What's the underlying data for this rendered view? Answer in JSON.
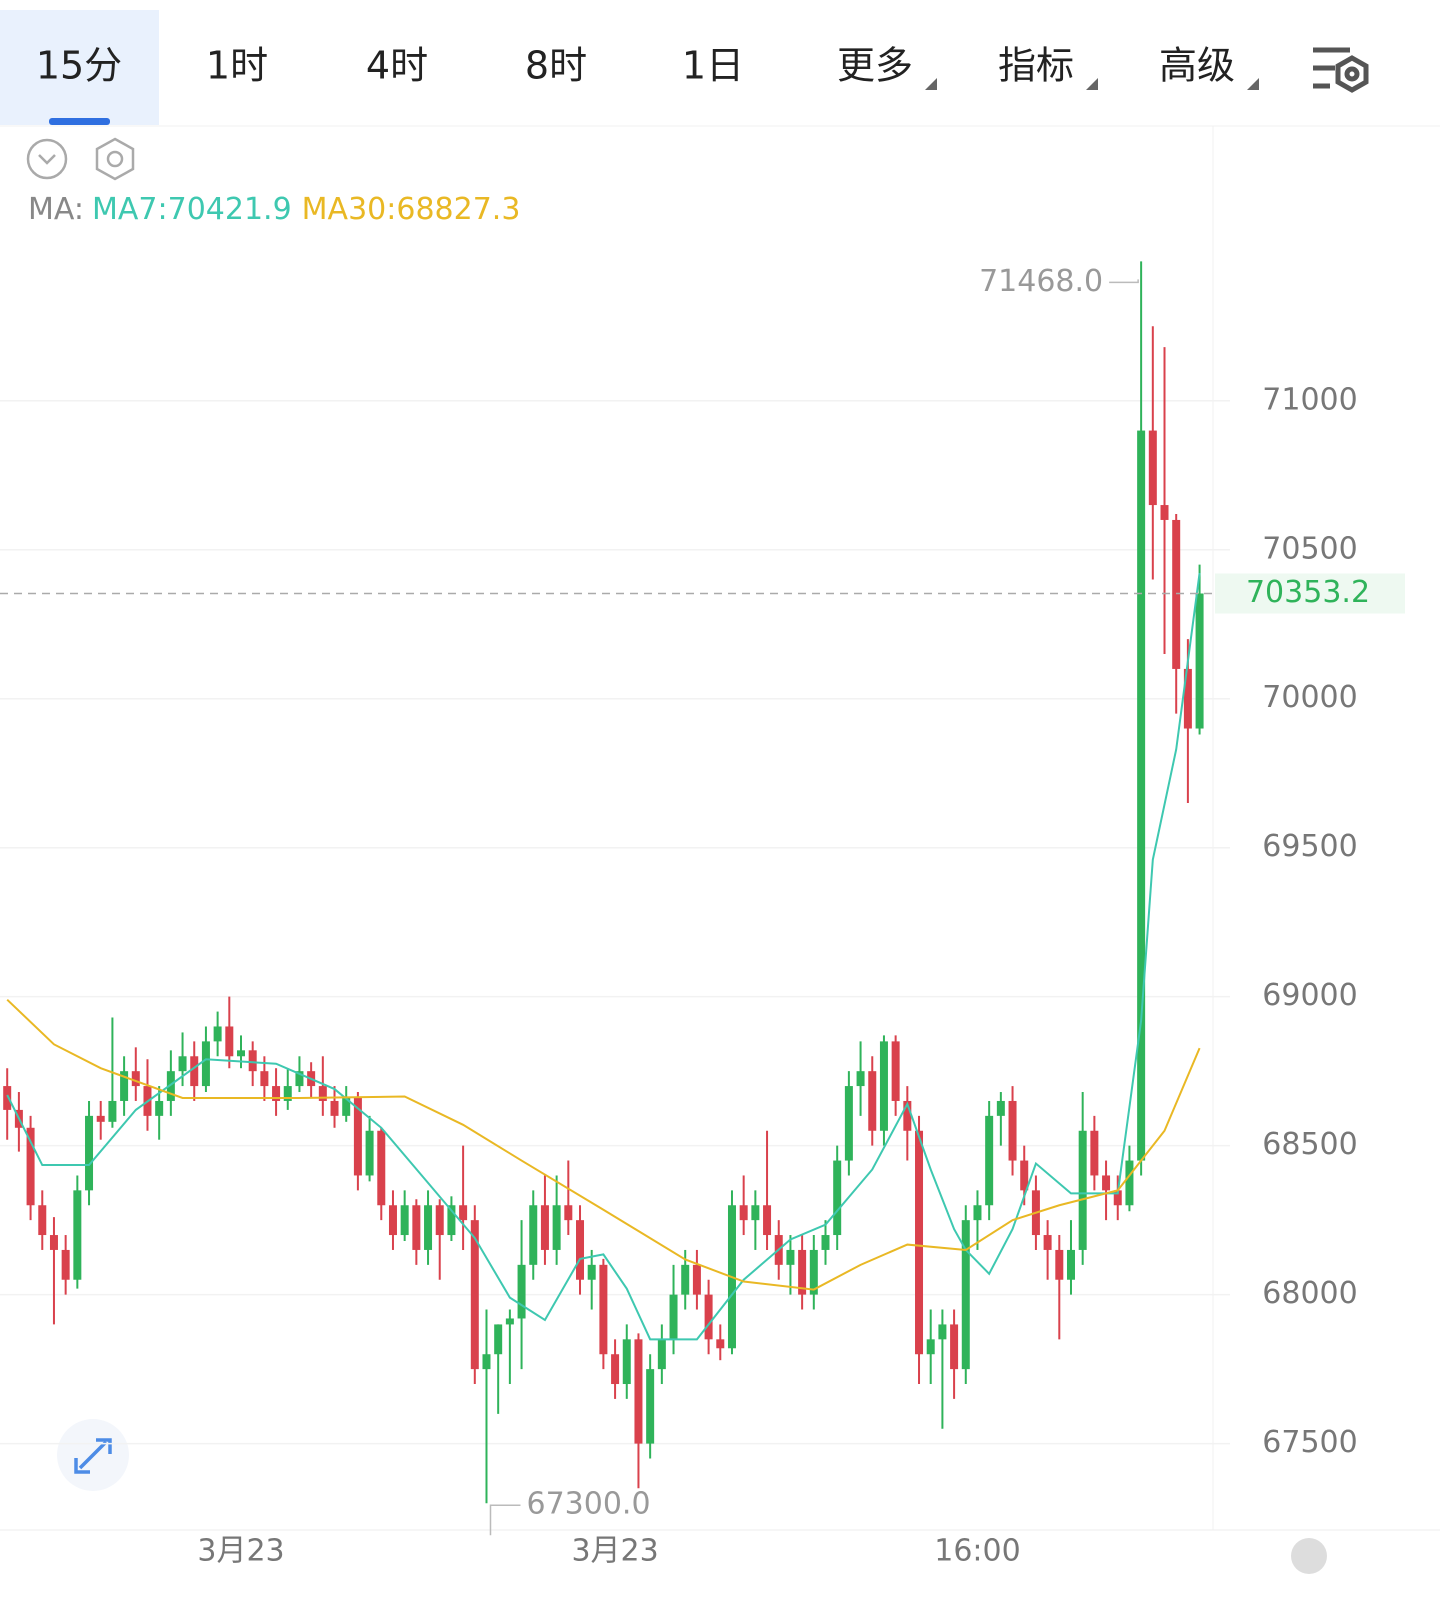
{
  "tabs": [
    "15分",
    "1时",
    "4时",
    "8时",
    "1日",
    "更多",
    "指标",
    "高级"
  ],
  "chart_data": {
    "type": "candlestick",
    "ma_prefix": "MA:",
    "up_color": "#2fb35a",
    "down_color": "#d9414c",
    "ylim": [
      67200,
      71600
    ],
    "yticks": [
      67500,
      68000,
      68500,
      69000,
      69500,
      70000,
      70500,
      71000
    ],
    "grid": true,
    "categories": [
      null,
      null,
      null,
      null,
      null,
      null,
      null,
      null,
      null,
      null,
      null,
      null,
      null,
      null,
      null,
      null,
      null,
      null,
      null,
      null,
      "3月23",
      null,
      null,
      null,
      null,
      null,
      null,
      null,
      null,
      null,
      null,
      null,
      null,
      null,
      null,
      null,
      null,
      null,
      null,
      null,
      null,
      null,
      null,
      null,
      null,
      null,
      null,
      null,
      null,
      null,
      null,
      null,
      "3月23",
      null,
      null,
      null,
      null,
      null,
      null,
      null,
      null,
      null,
      null,
      null,
      null,
      null,
      null,
      null,
      null,
      null,
      null,
      null,
      null,
      null,
      null,
      null,
      null,
      null,
      null,
      null,
      null,
      null,
      null,
      "16:00",
      null,
      null,
      null,
      null,
      null,
      null,
      null,
      null,
      null,
      null,
      null,
      null,
      null,
      null,
      null,
      null,
      null,
      null
    ],
    "candles": [
      [
        68700,
        68760,
        68520,
        68620
      ],
      [
        68620,
        68680,
        68480,
        68560
      ],
      [
        68560,
        68600,
        68250,
        68300
      ],
      [
        68300,
        68350,
        68150,
        68200
      ],
      [
        68200,
        68260,
        67900,
        68150
      ],
      [
        68150,
        68200,
        68000,
        68050
      ],
      [
        68050,
        68400,
        68020,
        68350
      ],
      [
        68350,
        68650,
        68300,
        68600
      ],
      [
        68600,
        68650,
        68520,
        68580
      ],
      [
        68580,
        68930,
        68560,
        68650
      ],
      [
        68650,
        68800,
        68600,
        68750
      ],
      [
        68750,
        68830,
        68650,
        68700
      ],
      [
        68700,
        68790,
        68550,
        68600
      ],
      [
        68600,
        68700,
        68520,
        68650
      ],
      [
        68650,
        68820,
        68600,
        68750
      ],
      [
        68750,
        68880,
        68700,
        68800
      ],
      [
        68800,
        68850,
        68650,
        68700
      ],
      [
        68700,
        68900,
        68680,
        68850
      ],
      [
        68850,
        68950,
        68800,
        68900
      ],
      [
        68900,
        69000,
        68760,
        68800
      ],
      [
        68800,
        68870,
        68760,
        68820
      ],
      [
        68820,
        68850,
        68700,
        68750
      ],
      [
        68750,
        68800,
        68650,
        68700
      ],
      [
        68700,
        68760,
        68600,
        68650
      ],
      [
        68650,
        68760,
        68620,
        68700
      ],
      [
        68700,
        68800,
        68680,
        68750
      ],
      [
        68750,
        68780,
        68660,
        68700
      ],
      [
        68700,
        68800,
        68600,
        68650
      ],
      [
        68650,
        68700,
        68560,
        68600
      ],
      [
        68600,
        68700,
        68580,
        68660
      ],
      [
        68660,
        68680,
        68350,
        68400
      ],
      [
        68400,
        68600,
        68380,
        68550
      ],
      [
        68550,
        68560,
        68250,
        68300
      ],
      [
        68300,
        68350,
        68150,
        68200
      ],
      [
        68200,
        68350,
        68180,
        68300
      ],
      [
        68300,
        68320,
        68100,
        68150
      ],
      [
        68150,
        68350,
        68100,
        68300
      ],
      [
        68300,
        68320,
        68050,
        68200
      ],
      [
        68200,
        68330,
        68180,
        68300
      ],
      [
        68300,
        68500,
        68150,
        68250
      ],
      [
        68250,
        68300,
        67700,
        67750
      ],
      [
        67750,
        67950,
        67300,
        67800
      ],
      [
        67800,
        67900,
        67600,
        67900
      ],
      [
        67900,
        67950,
        67700,
        67920
      ],
      [
        67920,
        68250,
        67750,
        68100
      ],
      [
        68100,
        68350,
        68050,
        68300
      ],
      [
        68300,
        68400,
        68100,
        68150
      ],
      [
        68150,
        68400,
        68100,
        68300
      ],
      [
        68300,
        68450,
        68200,
        68250
      ],
      [
        68250,
        68300,
        68000,
        68050
      ],
      [
        68050,
        68150,
        67950,
        68100
      ],
      [
        68100,
        68120,
        67750,
        67800
      ],
      [
        67800,
        67850,
        67650,
        67700
      ],
      [
        67700,
        67900,
        67650,
        67850
      ],
      [
        67850,
        67870,
        67350,
        67500
      ],
      [
        67500,
        67800,
        67450,
        67750
      ],
      [
        67750,
        67900,
        67700,
        67850
      ],
      [
        67850,
        68100,
        67800,
        68000
      ],
      [
        68000,
        68150,
        67950,
        68100
      ],
      [
        68100,
        68150,
        67950,
        68000
      ],
      [
        68000,
        68050,
        67800,
        67850
      ],
      [
        67850,
        67900,
        67780,
        67820
      ],
      [
        67820,
        68350,
        67800,
        68300
      ],
      [
        68300,
        68400,
        68200,
        68250
      ],
      [
        68250,
        68350,
        68150,
        68300
      ],
      [
        68300,
        68550,
        68150,
        68200
      ],
      [
        68200,
        68250,
        68050,
        68100
      ],
      [
        68100,
        68200,
        68000,
        68150
      ],
      [
        68150,
        68200,
        67950,
        68000
      ],
      [
        68000,
        68200,
        67950,
        68150
      ],
      [
        68150,
        68250,
        68100,
        68200
      ],
      [
        68200,
        68500,
        68150,
        68450
      ],
      [
        68450,
        68750,
        68400,
        68700
      ],
      [
        68700,
        68850,
        68600,
        68750
      ],
      [
        68750,
        68800,
        68500,
        68550
      ],
      [
        68550,
        68870,
        68500,
        68850
      ],
      [
        68850,
        68870,
        68600,
        68650
      ],
      [
        68650,
        68700,
        68450,
        68550
      ],
      [
        68550,
        68600,
        67700,
        67800
      ],
      [
        67800,
        67950,
        67700,
        67850
      ],
      [
        67850,
        67950,
        67550,
        67900
      ],
      [
        67900,
        67950,
        67650,
        67750
      ],
      [
        67750,
        68300,
        67700,
        68250
      ],
      [
        68250,
        68350,
        68150,
        68300
      ],
      [
        68300,
        68650,
        68250,
        68600
      ],
      [
        68600,
        68680,
        68500,
        68650
      ],
      [
        68650,
        68700,
        68400,
        68450
      ],
      [
        68450,
        68500,
        68300,
        68350
      ],
      [
        68350,
        68400,
        68150,
        68200
      ],
      [
        68200,
        68250,
        68050,
        68150
      ],
      [
        68150,
        68200,
        67850,
        68050
      ],
      [
        68050,
        68250,
        68000,
        68150
      ],
      [
        68150,
        68680,
        68100,
        68550
      ],
      [
        68550,
        68600,
        68350,
        68400
      ],
      [
        68400,
        68450,
        68250,
        68350
      ],
      [
        68350,
        68400,
        68250,
        68300
      ],
      [
        68300,
        68500,
        68280,
        68450
      ],
      [
        68450,
        71468,
        68400,
        70900
      ],
      [
        70900,
        71250,
        70400,
        70650
      ],
      [
        70650,
        71180,
        70150,
        70600
      ],
      [
        70600,
        70620,
        69950,
        70100
      ],
      [
        70100,
        70200,
        69650,
        69900
      ],
      [
        69900,
        70450,
        69880,
        70353.2
      ]
    ],
    "series": [
      {
        "name": "MA7:70421.9",
        "color": "#3ec8b0",
        "x": [
          0,
          3,
          7,
          11,
          17,
          23,
          28,
          32,
          36,
          40,
          43,
          46,
          49,
          51,
          53,
          55,
          59,
          63,
          67,
          70,
          74,
          77,
          79,
          81,
          82,
          84,
          86,
          88,
          91,
          95,
          97,
          98,
          100,
          102
        ],
        "values": [
          68670,
          68435,
          68435,
          68620,
          68790,
          68775,
          68690,
          68560,
          68375,
          68190,
          67990,
          67915,
          68120,
          68135,
          68020,
          67850,
          67850,
          68050,
          68185,
          68235,
          68420,
          68640,
          68420,
          68220,
          68150,
          68070,
          68220,
          68440,
          68340,
          68340,
          68920,
          69460,
          69830,
          70421.9
        ]
      },
      {
        "name": "MA30:68827.3",
        "color": "#e9b824",
        "x": [
          0,
          4,
          8,
          15,
          25,
          34,
          39,
          44,
          51,
          58,
          63,
          69,
          73,
          77,
          82,
          86,
          90,
          95,
          99,
          102
        ],
        "values": [
          68990,
          68840,
          68760,
          68660,
          68660,
          68665,
          68570,
          68450,
          68285,
          68118,
          68044,
          68017,
          68100,
          68168,
          68150,
          68250,
          68300,
          68350,
          68550,
          68827.3
        ]
      }
    ],
    "annotations": [
      {
        "value": 71468,
        "label": "71468.0",
        "index": 97
      },
      {
        "value": 67300,
        "label": "67300.0",
        "index": 41
      }
    ],
    "last_price": 70353.2
  }
}
